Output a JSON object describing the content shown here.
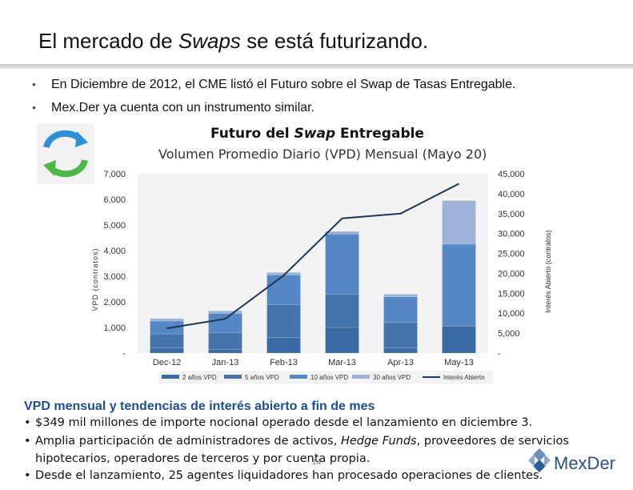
{
  "slide": {
    "title_prefix": "El mercado de ",
    "title_emph": "Swaps",
    "title_suffix": " se está futurizando.",
    "bullets": [
      "En Diciembre de 2012, el CME listó el Futuro sobre el Swap de Tasas Entregable.",
      "Mex.Der ya cuenta con un instrumento similar."
    ],
    "bullet_glyph": "•"
  },
  "chart_data": {
    "type": "bar",
    "title_prefix": "Futuro del ",
    "title_emph": "Swap",
    "title_suffix": " Entregable",
    "subtitle": "Volumen Promedio Diario (VPD) Mensual (Mayo 20)",
    "ylabel": "VPD (contratos)",
    "y2label": "Interés Abierto (contratos)",
    "categories": [
      "Dec-12",
      "Jan-13",
      "Feb-13",
      "Mar-13",
      "Apr-13",
      "May-13"
    ],
    "ylim": [
      0,
      7000
    ],
    "y2lim": [
      0,
      45000
    ],
    "yticks": [
      "-",
      "1,000",
      "2,000",
      "3,000",
      "4,000",
      "5,000",
      "6,000",
      "7,000"
    ],
    "y2ticks": [
      "-",
      "5,000",
      "10,000",
      "15,000",
      "20,000",
      "25,000",
      "30,000",
      "35,000",
      "40,000",
      "45,000"
    ],
    "stacked": true,
    "series": [
      {
        "name": "2 años VPD",
        "color": "#3a6aa3",
        "values": [
          200,
          150,
          600,
          1000,
          200,
          1050
        ]
      },
      {
        "name": "5 años VPD",
        "color": "#4574ad",
        "values": [
          550,
          650,
          1300,
          1300,
          1000,
          0
        ]
      },
      {
        "name": "10 años VPD",
        "color": "#5587c6",
        "values": [
          500,
          750,
          1150,
          2350,
          1000,
          3200
        ]
      },
      {
        "name": "30 años VPD",
        "color": "#9db2d6",
        "values": [
          100,
          100,
          100,
          100,
          100,
          1700
        ]
      },
      {
        "name": "Interés Abierto",
        "type": "line",
        "color": "#1f3657",
        "axis": "y2",
        "values": [
          6200,
          8600,
          19500,
          33800,
          35000,
          42500
        ]
      }
    ],
    "grid": false,
    "legend": "bottom"
  },
  "footer": {
    "section_title": "VPD mensual y tendencias de interés abierto a fin de mes",
    "bullet_glyph": "•",
    "b1": "$349 mil millones de importe nocional operado desde el lanzamiento en diciembre 3.",
    "b2_prefix": "Amplia participación de administradores de activos, ",
    "b2_emph": "Hedge Funds",
    "b2_suffix": ", proveedores de servicios",
    "b2_line2": "hipotecarios, operadores de terceros y por cuenta propia.",
    "b3": "Desde el lanzamiento, 25 agentes liquidadores han procesado operaciones de clientes.",
    "page_number": "14",
    "logo_text": "MexDer"
  }
}
